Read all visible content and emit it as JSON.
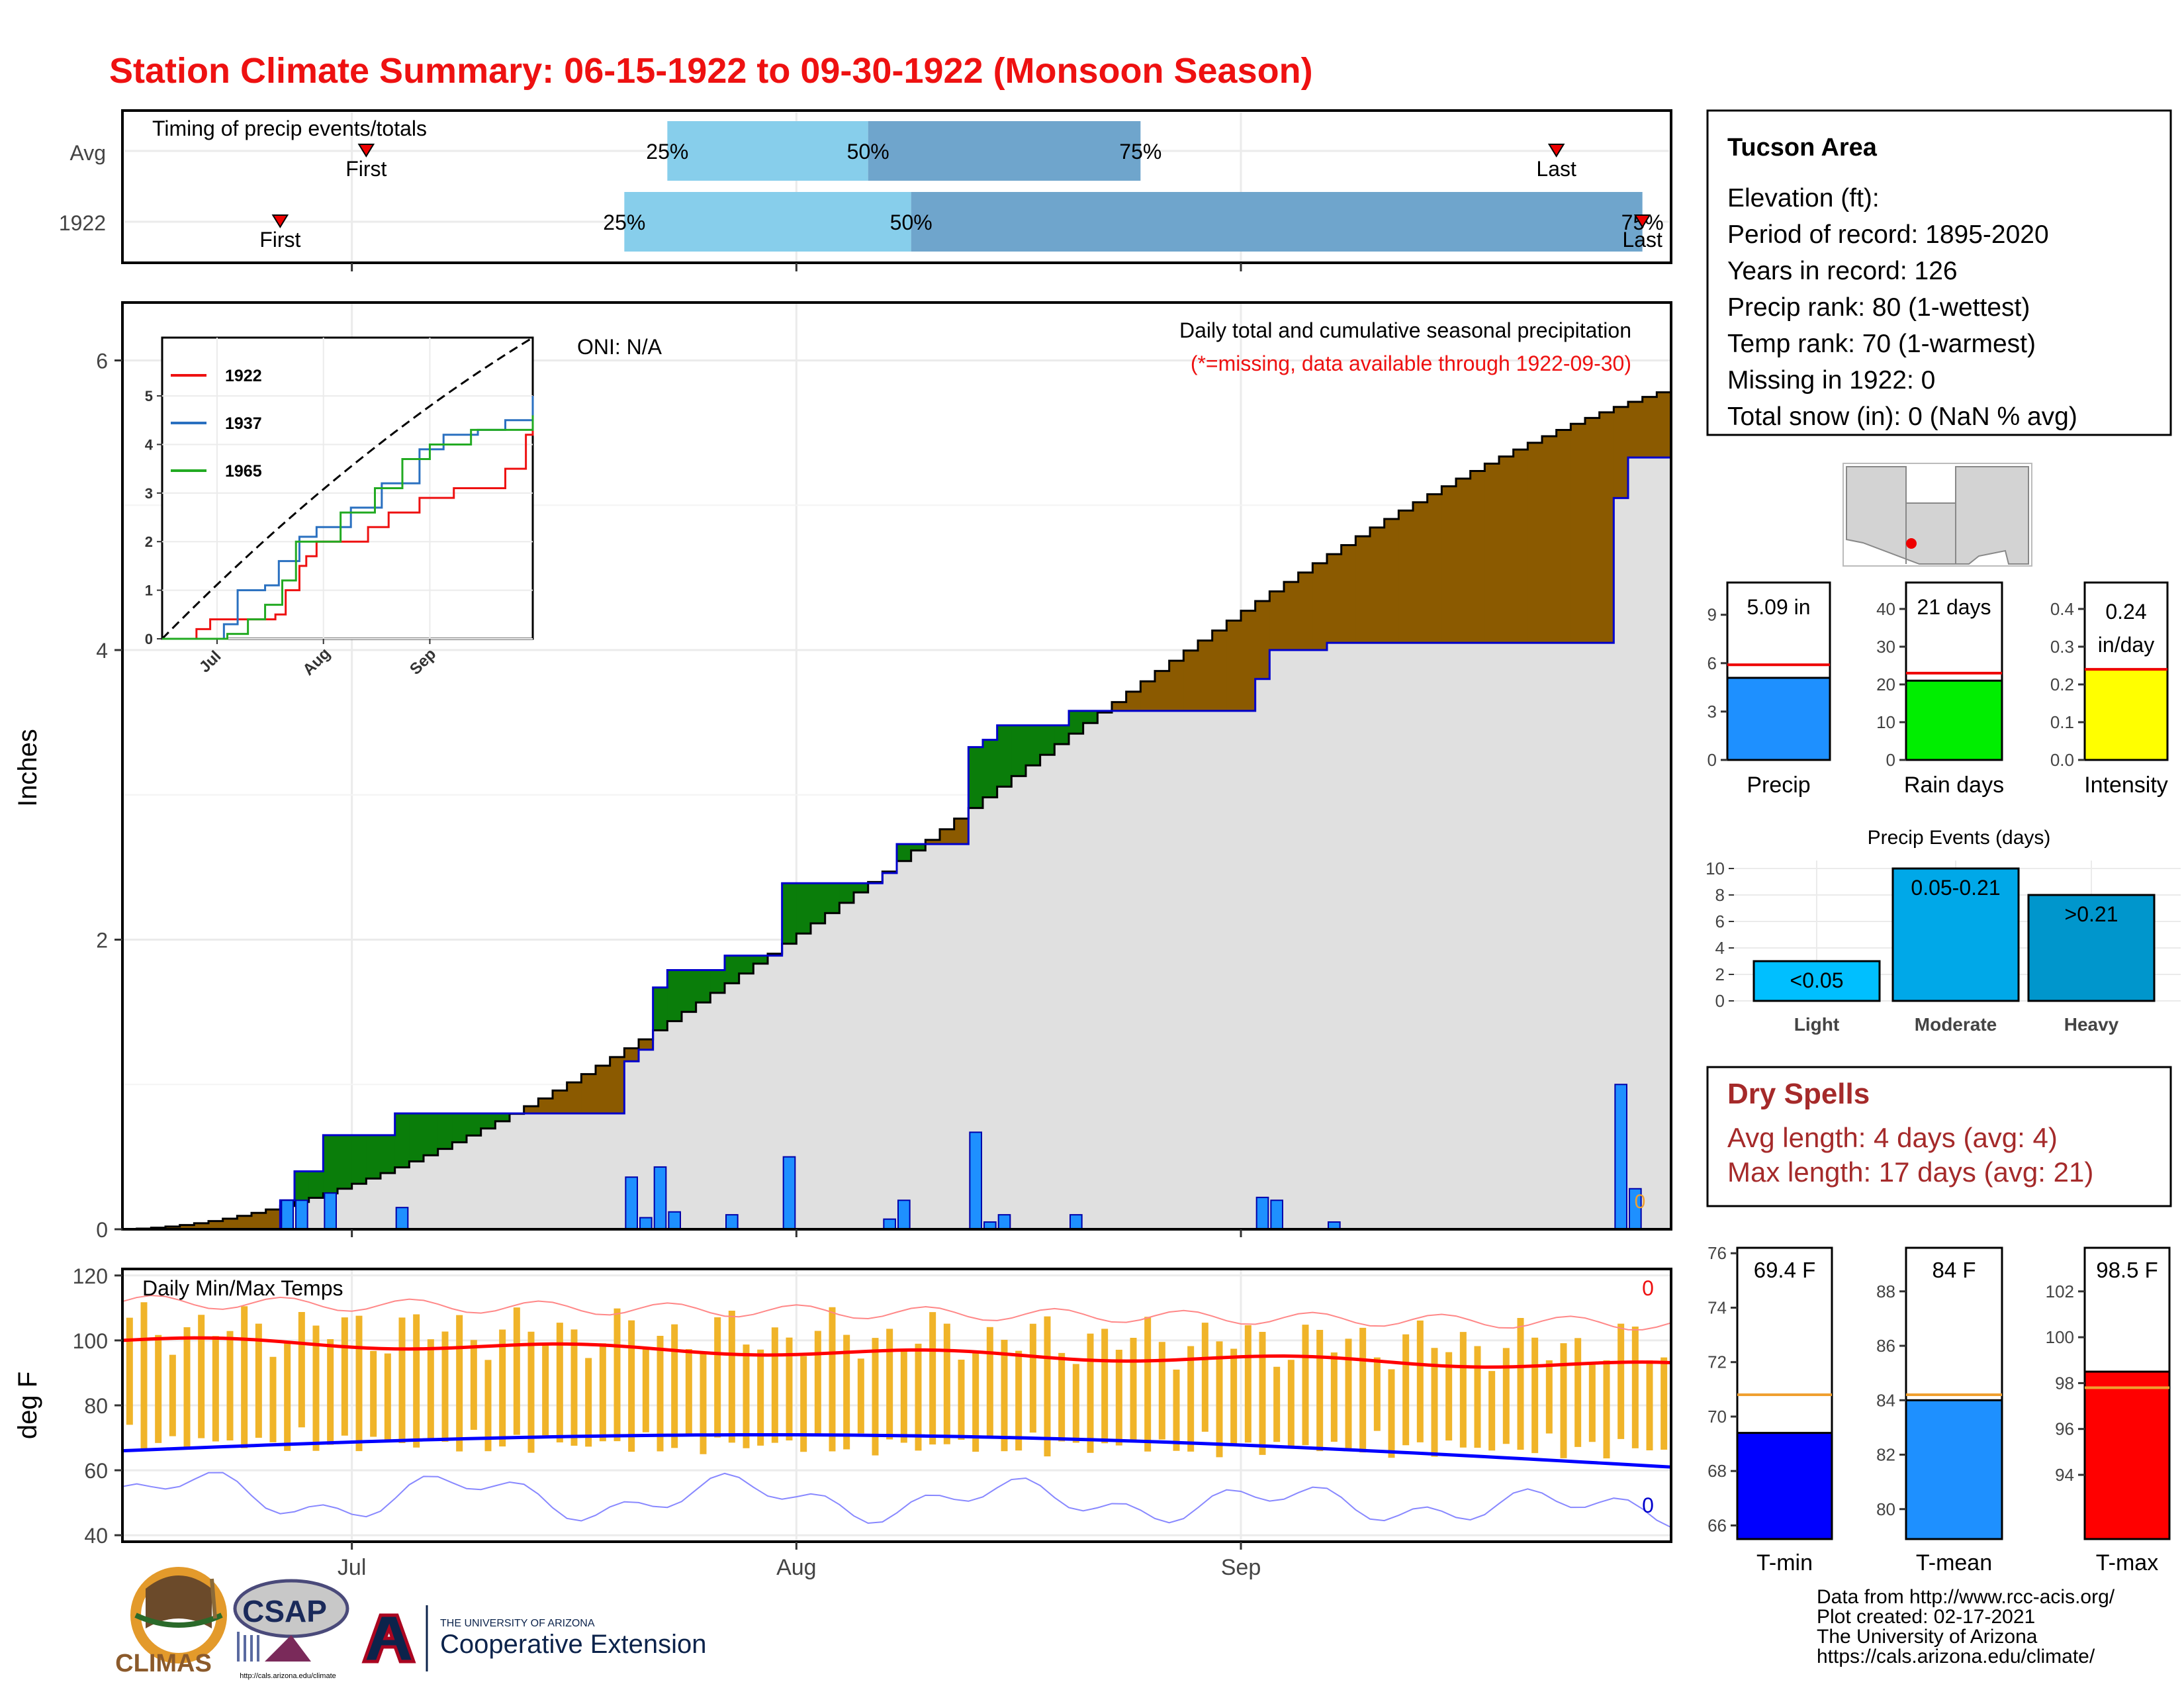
{
  "title": "Station Climate Summary: 06-15-1922 to 09-30-1922 (Monsoon Season)",
  "colors": {
    "title": "#ee1111",
    "accum_brown": "#8b5a00",
    "deficit_green": "#0a7d0a",
    "bar_blue": "#1e90ff",
    "line_blue": "#0000cc",
    "tmax_red": "#ff0000",
    "tmin_blue": "#0000ff",
    "temp_bar": "#f0b429",
    "q_light": "#87ceeb",
    "q_dark": "#6fa5cc",
    "dry_text": "#a52a2a"
  },
  "timing": {
    "label": "Timing of precip events/totals",
    "rows": [
      {
        "label": "Avg",
        "first_label": "First",
        "last_label": "Last",
        "q25": "25%",
        "q50": "50%",
        "q75": "75%",
        "first": "07-02",
        "p25": "07-23",
        "p50": "08-06",
        "p75": "08-25",
        "last": "09-23"
      },
      {
        "label": "1922",
        "first_label": "First",
        "last_label": "Last",
        "q25": "25%",
        "q50": "50%",
        "q75": "75%",
        "first": "06-26",
        "p25": "07-20",
        "p50": "08-09",
        "p75": "09-29",
        "last": "09-29"
      }
    ]
  },
  "precip_chart": {
    "ylabel": "Inches",
    "oni": "ONI: N/A",
    "title": "Daily total and cumulative seasonal precipitation",
    "subtitle": "(*=missing, data available through 1922-09-30)",
    "missing_value": "0",
    "ylim": [
      0,
      6.4
    ],
    "yticks": [
      "0",
      "2",
      "4",
      "6"
    ],
    "xticks": [
      "Jul",
      "Aug",
      "Sep"
    ]
  },
  "inset": {
    "yticks": [
      "0",
      "1",
      "2",
      "3",
      "4",
      "5"
    ],
    "xticks": [
      "Jul",
      "Aug",
      "Sep"
    ],
    "legend": [
      "1922",
      "1937",
      "1965"
    ]
  },
  "temp_chart": {
    "label": "Daily Min/Max Temps",
    "ylabel": "deg F",
    "yticks": [
      "40",
      "60",
      "80",
      "100",
      "120"
    ],
    "xticks": [
      "Jul",
      "Aug",
      "Sep"
    ],
    "missing_max": "0",
    "missing_min": "0"
  },
  "info": {
    "name": "Tucson Area",
    "lines": [
      "Elevation (ft):",
      "Period of record: 1895-2020",
      "Years in record: 126",
      "Precip rank: 80 (1-wettest)",
      "Temp rank: 70 (1-warmest)",
      "Missing in 1922: 0",
      "Total snow (in): 0 (NaN % avg)"
    ]
  },
  "mini_bars": [
    {
      "label": "Precip",
      "value_text": "5.09 in",
      "value": 5.09,
      "avg": 5.9,
      "yticks": [
        "0",
        "3",
        "6",
        "9"
      ],
      "max": 11,
      "color": "#1e90ff"
    },
    {
      "label": "Rain days",
      "value_text": "21 days",
      "value": 21,
      "avg": 23,
      "yticks": [
        "0",
        "10",
        "20",
        "30",
        "40"
      ],
      "max": 47,
      "color": "#00ee00"
    },
    {
      "label": "Intensity",
      "value_text1": "0.24",
      "value_text2": "in/day",
      "value": 0.24,
      "avg": 0.24,
      "yticks": [
        "0.0",
        "0.1",
        "0.2",
        "0.3",
        "0.4"
      ],
      "max": 0.47,
      "color": "#ffff00"
    }
  ],
  "events": {
    "title": "Precip Events (days)",
    "yticks": [
      "0",
      "2",
      "4",
      "6",
      "8",
      "10"
    ],
    "bars": [
      {
        "label": "Light",
        "value_text": "<0.05",
        "value": 3,
        "color": "#00bfff"
      },
      {
        "label": "Moderate",
        "value_text": "0.05-0.21",
        "value": 10,
        "color": "#00a8e8"
      },
      {
        "label": "Heavy",
        "value_text": ">0.21",
        "value": 8,
        "color": "#0096cc"
      }
    ]
  },
  "dry_spells": {
    "title": "Dry Spells",
    "avg": "Avg length: 4 days (avg: 4)",
    "max": "Max length: 17 days (avg: 21)"
  },
  "temp_bars": [
    {
      "label": "T-min",
      "value_text": "69.4 F",
      "value": 69.4,
      "avg": 70.8,
      "min": 65.5,
      "max": 76.2,
      "yticks": [
        "66",
        "68",
        "70",
        "72",
        "74",
        "76"
      ],
      "color": "#0000ff"
    },
    {
      "label": "T-mean",
      "value_text": "84 F",
      "value": 84,
      "avg": 84.2,
      "min": 78.9,
      "max": 89.6,
      "yticks": [
        "80",
        "82",
        "84",
        "86",
        "88"
      ],
      "color": "#1e90ff"
    },
    {
      "label": "T-max",
      "value_text": "98.5 F",
      "value": 98.5,
      "avg": 97.8,
      "min": 91.2,
      "max": 103.9,
      "yticks": [
        "94",
        "96",
        "98",
        "100",
        "102"
      ],
      "color": "#ff0000"
    }
  ],
  "credits": [
    "Data from http://www.rcc-acis.org/",
    "Plot created: 02-17-2021",
    "The University of Arizona",
    "https://cals.arizona.edu/climate/"
  ],
  "logos": {
    "climas": "CLIMAS",
    "csap": "CSAP",
    "csap_url": "http://cals.arizona.edu/climate",
    "ua_small": "THE UNIVERSITY OF ARIZONA",
    "ua_big": "Cooperative Extension"
  },
  "chart_data": [
    {
      "type": "area",
      "title": "Daily total and cumulative seasonal precipitation",
      "ylabel": "Inches",
      "x_start": "1922-06-15",
      "x_end": "1922-09-30",
      "ylim": [
        0,
        6.4
      ],
      "daily_precip_1922": [
        {
          "date": "06-26",
          "value": 0.2
        },
        {
          "date": "06-27",
          "value": 0.2
        },
        {
          "date": "06-29",
          "value": 0.25
        },
        {
          "date": "07-04",
          "value": 0.15
        },
        {
          "date": "07-20",
          "value": 0.36
        },
        {
          "date": "07-21",
          "value": 0.08
        },
        {
          "date": "07-22",
          "value": 0.43
        },
        {
          "date": "07-23",
          "value": 0.12
        },
        {
          "date": "07-27",
          "value": 0.1
        },
        {
          "date": "07-31",
          "value": 0.5
        },
        {
          "date": "08-07",
          "value": 0.07
        },
        {
          "date": "08-08",
          "value": 0.2
        },
        {
          "date": "08-13",
          "value": 0.67
        },
        {
          "date": "08-14",
          "value": 0.05
        },
        {
          "date": "08-15",
          "value": 0.1
        },
        {
          "date": "08-20",
          "value": 0.1
        },
        {
          "date": "09-02",
          "value": 0.22
        },
        {
          "date": "09-03",
          "value": 0.2
        },
        {
          "date": "09-07",
          "value": 0.05
        },
        {
          "date": "09-27",
          "value": 1.0
        },
        {
          "date": "09-28",
          "value": 0.28
        }
      ],
      "cumulative_1922_final": 5.09,
      "cumulative_avg_final": 5.78
    },
    {
      "type": "line",
      "title": "Daily Min/Max Temps",
      "ylabel": "deg F",
      "ylim": [
        40,
        120
      ],
      "avg_tmax_start": 100,
      "avg_tmax_end": 92,
      "avg_tmin_start": 66,
      "avg_tmin_end": 62
    }
  ]
}
